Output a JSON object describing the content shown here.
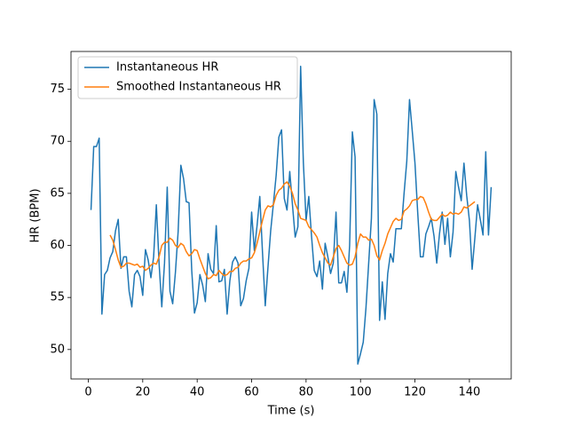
{
  "chart_data": {
    "type": "line",
    "xlabel": "Time (s)",
    "ylabel": "HR (BPM)",
    "xlim": [
      -6.35,
      155.35
    ],
    "ylim": [
      47.17,
      78.63
    ],
    "xticks": [
      0,
      20,
      40,
      60,
      80,
      100,
      120,
      140
    ],
    "yticks": [
      50,
      55,
      60,
      65,
      70,
      75
    ],
    "legend": "upper left",
    "grid": false,
    "series": [
      {
        "name": "Instantaneous HR",
        "color": "#1f77b4",
        "x": [
          1,
          2,
          3,
          4,
          5,
          6,
          7,
          8,
          9,
          10,
          11,
          12,
          13,
          14,
          15,
          16,
          17,
          18,
          19,
          20,
          21,
          22,
          23,
          24,
          25,
          26,
          27,
          28,
          29,
          30,
          31,
          32,
          33,
          34,
          35,
          36,
          37,
          38,
          39,
          40,
          41,
          42,
          43,
          44,
          45,
          46,
          47,
          48,
          49,
          50,
          51,
          52,
          53,
          54,
          55,
          56,
          57,
          58,
          59,
          60,
          61,
          62,
          63,
          64,
          65,
          66,
          67,
          68,
          69,
          70,
          71,
          72,
          73,
          74,
          75,
          76,
          77,
          78,
          79,
          80,
          81,
          82,
          83,
          84,
          85,
          86,
          87,
          88,
          89,
          90,
          91,
          92,
          93,
          94,
          95,
          96,
          97,
          98,
          99,
          100,
          101,
          102,
          103,
          104,
          105,
          106,
          107,
          108,
          109,
          110,
          111,
          112,
          113,
          114,
          115,
          116,
          117,
          118,
          119,
          120,
          121,
          122,
          123,
          124,
          125,
          126,
          127,
          128,
          129,
          130,
          131,
          132,
          133,
          134,
          135,
          136,
          137,
          138,
          139,
          140,
          141,
          142,
          143,
          144,
          145,
          146,
          147,
          148
        ],
        "values": [
          63.4,
          69.5,
          69.5,
          70.3,
          53.4,
          57.2,
          57.6,
          58.8,
          59.4,
          61.4,
          62.5,
          57.8,
          58.9,
          58.9,
          55.6,
          54.1,
          57.2,
          57.6,
          57,
          55.2,
          59.6,
          58.6,
          56.9,
          58.9,
          63.9,
          58.3,
          54.1,
          58.3,
          65.6,
          55.6,
          54.4,
          57.4,
          61.3,
          67.7,
          66.4,
          64.2,
          64.1,
          57.6,
          53.5,
          54.5,
          57.2,
          56.2,
          54.6,
          59.2,
          57.7,
          57.3,
          61.9,
          56.5,
          56.6,
          57.7,
          53.4,
          56.6,
          58.4,
          58.9,
          58.3,
          54.2,
          54.9,
          56.6,
          57.8,
          63.2,
          59.5,
          61.9,
          64.7,
          59.3,
          54.2,
          57.9,
          61.4,
          64,
          66.7,
          70.4,
          71.1,
          64.5,
          63.4,
          67.1,
          63.9,
          60.8,
          61.8,
          77.2,
          68,
          62.4,
          64.7,
          60.9,
          57.6,
          57,
          58.5,
          55.8,
          60.2,
          58.9,
          57.3,
          58.3,
          63.2,
          56.4,
          56.4,
          57.5,
          55.5,
          60,
          70.9,
          68.5,
          48.6,
          49.6,
          50.7,
          54,
          58.3,
          62.6,
          74,
          72.6,
          52.8,
          56.5,
          52.9,
          57.3,
          59.2,
          58.4,
          61.6,
          61.6,
          61.6,
          65,
          68.1,
          74,
          71,
          67.9,
          63.2,
          58.9,
          58.9,
          61.1,
          61.8,
          62.6,
          60.9,
          58.3,
          61.1,
          63.2,
          60.1,
          62.6,
          58.9,
          61.3,
          67.1,
          65.6,
          64.3,
          67.9,
          64.8,
          62.4,
          57.7,
          60.7,
          63.9,
          62.5,
          61,
          69,
          61,
          65.6
        ]
      },
      {
        "name": "Smoothed Instantaneous HR",
        "color": "#ff7f0e",
        "x": [
          8,
          9,
          10,
          11,
          12,
          13,
          14,
          15,
          16,
          17,
          18,
          19,
          20,
          21,
          22,
          23,
          24,
          25,
          26,
          27,
          28,
          29,
          30,
          31,
          32,
          33,
          34,
          35,
          36,
          37,
          38,
          39,
          40,
          41,
          42,
          43,
          44,
          45,
          46,
          47,
          48,
          49,
          50,
          51,
          52,
          53,
          54,
          55,
          56,
          57,
          58,
          59,
          60,
          61,
          62,
          63,
          64,
          65,
          66,
          67,
          68,
          69,
          70,
          71,
          72,
          73,
          74,
          75,
          76,
          77,
          78,
          79,
          80,
          81,
          82,
          83,
          84,
          85,
          86,
          87,
          88,
          89,
          90,
          91,
          92,
          93,
          94,
          95,
          96,
          97,
          98,
          99,
          100,
          101,
          102,
          103,
          104,
          105,
          106,
          107,
          108,
          109,
          110,
          111,
          112,
          113,
          114,
          115,
          116,
          117,
          118,
          119,
          120,
          121,
          122,
          123,
          124,
          125,
          126,
          127,
          128,
          129,
          130,
          131,
          132,
          133,
          134,
          135,
          136,
          137,
          138,
          139,
          140,
          141,
          142
        ],
        "values": [
          61,
          60.5,
          59.6,
          58.6,
          57.9,
          58,
          58.3,
          58.3,
          58.2,
          58.1,
          58.2,
          57.9,
          58,
          57.6,
          57.8,
          58.1,
          58.3,
          58.2,
          58.9,
          60,
          60.3,
          60.3,
          60.7,
          60.5,
          60,
          59.8,
          60.2,
          60,
          59.4,
          59,
          59.2,
          59.6,
          59.5,
          58.7,
          58,
          57.3,
          56.8,
          56.9,
          57.2,
          57.1,
          57.6,
          57.3,
          57.1,
          57.2,
          57.5,
          57.5,
          57.8,
          57.9,
          58.3,
          58.5,
          58.5,
          58.7,
          58.8,
          59.3,
          60.2,
          61.3,
          62.4,
          63.4,
          63.8,
          63.7,
          63.9,
          64.8,
          65.3,
          65.5,
          65.9,
          66.1,
          65.7,
          65,
          64,
          63.4,
          62.6,
          62.5,
          62.4,
          61.8,
          61.5,
          61.2,
          60.8,
          60,
          59.3,
          58.8,
          58.3,
          58.1,
          58.9,
          59.7,
          60,
          59.5,
          58.9,
          58.3,
          58.1,
          58.2,
          58.9,
          60.2,
          61.1,
          60.8,
          60.8,
          60.5,
          60.6,
          60,
          59,
          58.6,
          59.5,
          60.2,
          61.1,
          61.7,
          62.3,
          62.6,
          62.4,
          62.5,
          63.3,
          63.5,
          63.8,
          64.3,
          64.4,
          64.4,
          64.7,
          64.6,
          64,
          63.2,
          62.5,
          62.4,
          62.4,
          62.7,
          63,
          62.8,
          62.9,
          63.2,
          63,
          63.1,
          63,
          63.2,
          63.7,
          63.6,
          63.8,
          64,
          64.2
        ]
      }
    ]
  }
}
